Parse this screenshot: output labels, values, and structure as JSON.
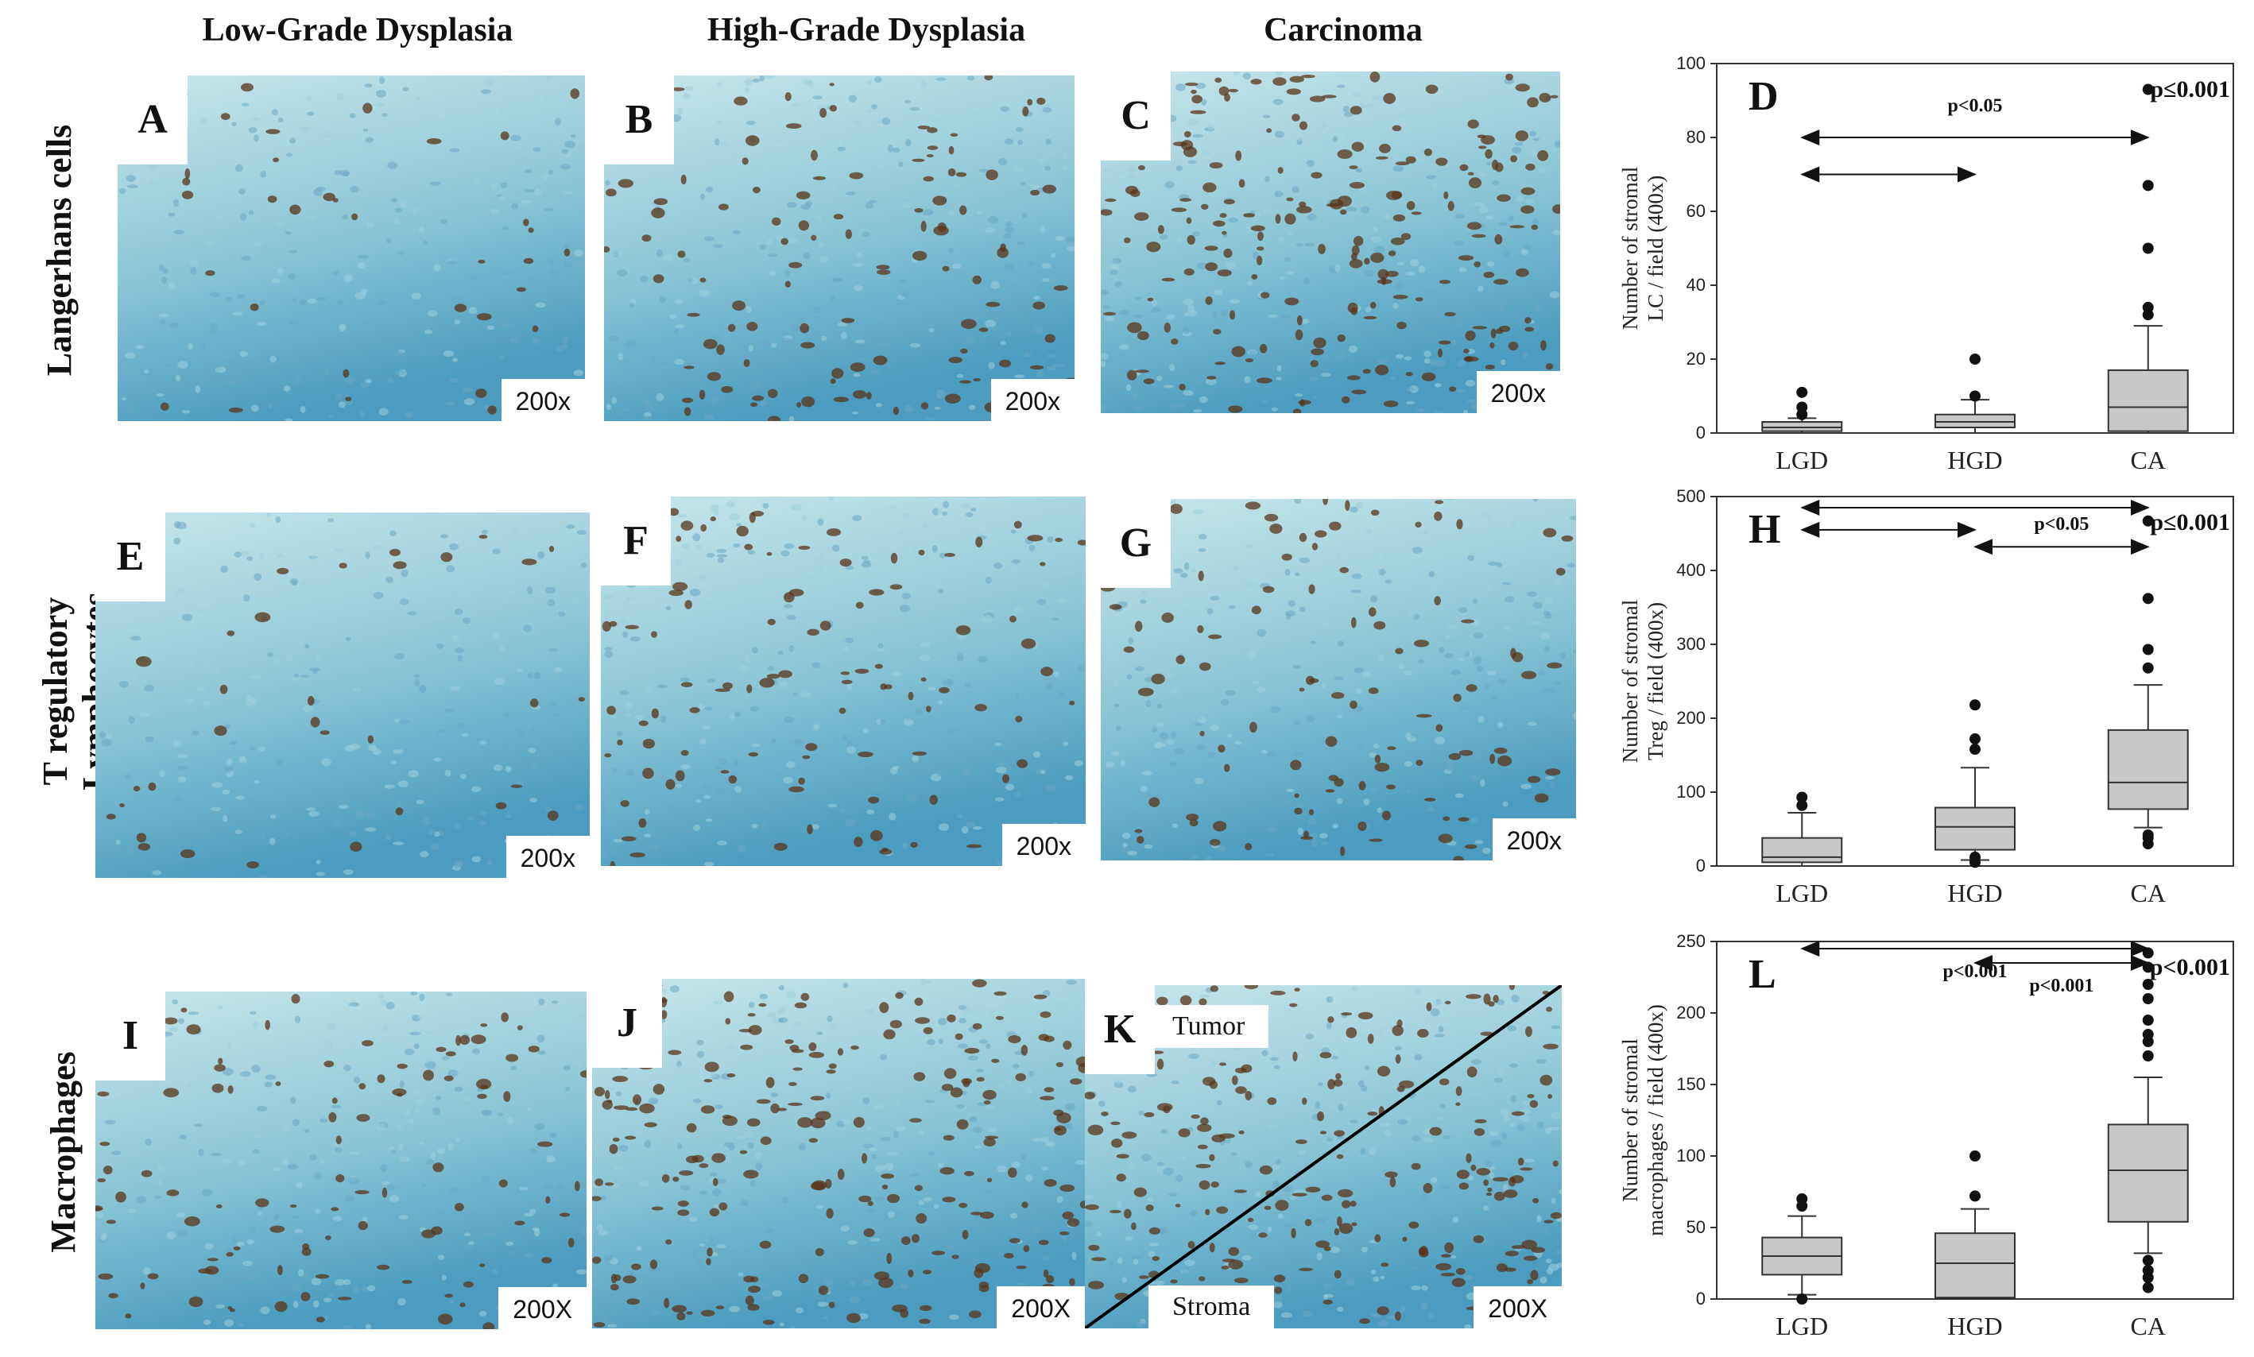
{
  "columns": [
    "Low-Grade Dysplasia",
    "High-Grade Dysplasia",
    "Carcinoma"
  ],
  "rows": [
    {
      "label_lines": [
        "Langerhans cells"
      ]
    },
    {
      "label_lines": [
        "T regulatory",
        "Lymphocytes"
      ]
    },
    {
      "label_lines": [
        "Macrophages"
      ]
    }
  ],
  "panels": [
    {
      "letter": "A",
      "magnification": "200x",
      "stain": "sparse"
    },
    {
      "letter": "B",
      "magnification": "200x",
      "stain": "moderate"
    },
    {
      "letter": "C",
      "magnification": "200x",
      "stain": "dense"
    },
    {
      "letter": "E",
      "magnification": "200x",
      "stain": "sparse"
    },
    {
      "letter": "F",
      "magnification": "200x",
      "stain": "moderate"
    },
    {
      "letter": "G",
      "magnification": "200x",
      "stain": "moderate"
    },
    {
      "letter": "I",
      "magnification": "200X",
      "stain": "moderate"
    },
    {
      "letter": "J",
      "magnification": "200X",
      "stain": "dense"
    },
    {
      "letter": "K",
      "magnification": "200X",
      "stain": "dense",
      "tumor_label": "Tumor",
      "stroma_label": "Stroma"
    }
  ],
  "colors": {
    "tissue_light": "#c8e6ec",
    "tissue_mid": "#8cc6d6",
    "tissue_dark": "#4b9cc0",
    "stain": "#5a3418",
    "box_fill": "#c8c8c8"
  },
  "chart_data": [
    {
      "type": "box",
      "letter": "D",
      "ylabel_lines": [
        "Number of stromal",
        "LC / field (400x)"
      ],
      "categories": [
        "LGD",
        "HGD",
        "CA"
      ],
      "ylim": [
        0,
        100
      ],
      "yticks": [
        "0",
        "20",
        "40",
        "60",
        "80",
        "100"
      ],
      "boxes": [
        {
          "whisker_low": 0,
          "q1": 0.5,
          "median": 1.5,
          "q3": 3,
          "whisker_high": 4,
          "outliers": [
            5,
            7,
            11
          ]
        },
        {
          "whisker_low": 0,
          "q1": 1.5,
          "median": 3,
          "q3": 5,
          "whisker_high": 9,
          "outliers": [
            10,
            20
          ]
        },
        {
          "whisker_low": 0,
          "q1": 0.5,
          "median": 7,
          "q3": 17,
          "whisker_high": 29,
          "outliers": [
            32,
            34,
            50,
            67,
            93
          ]
        }
      ],
      "comparisons": [
        {
          "from": 0,
          "to": 2,
          "y": 80,
          "label": "p<0.05",
          "label_y": 87
        },
        {
          "from": 0,
          "to": 1,
          "y": 70,
          "label": ""
        }
      ],
      "significance": "p≤0.001"
    },
    {
      "type": "box",
      "letter": "H",
      "ylabel_lines": [
        "Number of stromal",
        "Treg / field (400x)"
      ],
      "categories": [
        "LGD",
        "HGD",
        "CA"
      ],
      "ylim": [
        0,
        500
      ],
      "yticks": [
        "0",
        "100",
        "200",
        "300",
        "400",
        "500"
      ],
      "boxes": [
        {
          "whisker_low": 0,
          "q1": 5,
          "median": 12,
          "q3": 38,
          "whisker_high": 72,
          "outliers": [
            82,
            93
          ]
        },
        {
          "whisker_low": 8,
          "q1": 22,
          "median": 53,
          "q3": 79,
          "whisker_high": 133,
          "outliers": [
            5,
            12,
            158,
            172,
            218
          ]
        },
        {
          "whisker_low": 52,
          "q1": 77,
          "median": 113,
          "q3": 184,
          "whisker_high": 245,
          "outliers": [
            30,
            38,
            42,
            268,
            293,
            362,
            467
          ]
        }
      ],
      "comparisons": [
        {
          "from": 0,
          "to": 2,
          "y": 485,
          "label": ""
        },
        {
          "from": 0,
          "to": 1,
          "y": 455,
          "label": ""
        },
        {
          "from": 1,
          "to": 2,
          "y": 432,
          "label": "p<0.05",
          "label_y": 455
        }
      ],
      "significance": "p≤0.001"
    },
    {
      "type": "box",
      "letter": "L",
      "ylabel_lines": [
        "Number of stromal",
        "macrophages / field (400x)"
      ],
      "categories": [
        "LGD",
        "HGD",
        "CA"
      ],
      "ylim": [
        0,
        250
      ],
      "yticks": [
        "0",
        "50",
        "100",
        "150",
        "200",
        "250"
      ],
      "boxes": [
        {
          "whisker_low": 3,
          "q1": 17,
          "median": 30,
          "q3": 43,
          "whisker_high": 58,
          "outliers": [
            0,
            65,
            70
          ]
        },
        {
          "whisker_low": 0,
          "q1": 1,
          "median": 25,
          "q3": 46,
          "whisker_high": 63,
          "outliers": [
            72,
            100
          ]
        },
        {
          "whisker_low": 32,
          "q1": 54,
          "median": 90,
          "q3": 122,
          "whisker_high": 155,
          "outliers": [
            8,
            15,
            20,
            27,
            170,
            180,
            185,
            195,
            210,
            220,
            232,
            242
          ]
        }
      ],
      "comparisons": [
        {
          "from": 0,
          "to": 2,
          "y": 245,
          "label": "p<0.001",
          "label_y": 225
        },
        {
          "from": 1,
          "to": 2,
          "y": 235,
          "label": "p<0.001",
          "label_y": 215
        }
      ],
      "significance": "p<0.001"
    }
  ]
}
